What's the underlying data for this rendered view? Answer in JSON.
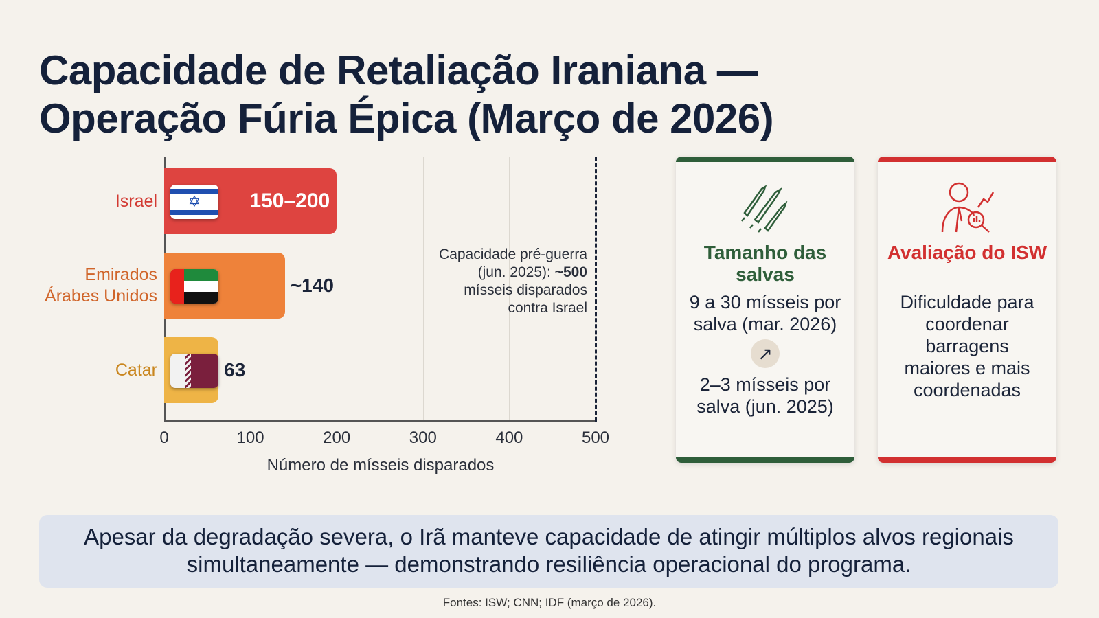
{
  "title_line1": "Capacidade de Retaliação Iraniana —",
  "title_line2": "Operação Fúria Épica (Março de 2026)",
  "chart_data": {
    "type": "bar",
    "orientation": "horizontal",
    "categories": [
      "Israel",
      "Emirados Árabes Unidos",
      "Catar"
    ],
    "values": [
      200,
      140,
      63
    ],
    "value_labels": [
      "150–200",
      "~140",
      "63"
    ],
    "range_low": [
      150,
      null,
      null
    ],
    "colors": [
      "#de4440",
      "#ee823a",
      "#eeb446"
    ],
    "label_colors": [
      "#d23a32",
      "#d0652a",
      "#c9861e"
    ],
    "xlabel": "Número de mísseis disparados",
    "xlim": [
      0,
      500
    ],
    "xticks": [
      0,
      100,
      200,
      300,
      400,
      500
    ],
    "xtick_labels": [
      "0",
      "100",
      "200",
      "300",
      "400",
      "500"
    ],
    "reference_line": {
      "value": 500,
      "style": "dashed"
    },
    "annotation": {
      "text": "Capacidade pré-guerra (jun. 2025): ",
      "bold": "~500",
      "text_after": " mísseis disparados contra Israel"
    }
  },
  "cards": [
    {
      "title": "Tamanho das salvas",
      "icon": "missiles-icon",
      "color": "#2f5e3a",
      "text1": "9 a 30 mísseis por salva (mar. 2026)",
      "arrow": "↗",
      "text2": "2–3 mísseis por salva (jun. 2025)"
    },
    {
      "title": "Avaliação do ISW",
      "icon": "analyst-icon",
      "color": "#d23030",
      "text1": "Dificuldade para coordenar barragens maiores e mais coordenadas"
    }
  ],
  "bottom_text": "Apesar da degradação severa, o Irã manteve capacidade de atingir múltiplos alvos regionais simultaneamente — demonstrando resiliência operacional do programa.",
  "source": "Fontes: ISW; CNN; IDF (março de 2026)."
}
